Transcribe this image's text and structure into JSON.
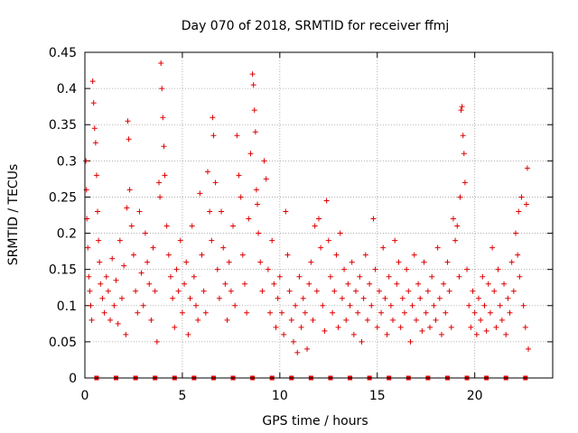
{
  "chart_data": {
    "type": "scatter",
    "title": "Day 070 of 2018, SRMTID for receiver ffmj",
    "xlabel": "GPS time / hours",
    "ylabel": "SRMTID / TECUs",
    "xlim": [
      0,
      24
    ],
    "ylim": [
      0,
      0.45
    ],
    "xticks": [
      0,
      5,
      10,
      15,
      20
    ],
    "xtick_labels": [
      "0",
      "5",
      "10",
      "15",
      "20"
    ],
    "yticks": [
      0,
      0.05,
      0.1,
      0.15,
      0.2,
      0.25,
      0.3,
      0.35,
      0.4,
      0.45
    ],
    "ytick_labels": [
      "0",
      "0.05",
      "0.1",
      "0.15",
      "0.2",
      "0.25",
      "0.3",
      "0.35",
      "0.4",
      "0.45"
    ],
    "grid": true,
    "marker": "+",
    "color": "#e00000",
    "series": [
      {
        "name": "SRMTID",
        "points": [
          [
            0.05,
            0.3
          ],
          [
            0.08,
            0.26
          ],
          [
            0.1,
            0.22
          ],
          [
            0.15,
            0.18
          ],
          [
            0.2,
            0.14
          ],
          [
            0.25,
            0.12
          ],
          [
            0.3,
            0.1
          ],
          [
            0.35,
            0.08
          ],
          [
            0.4,
            0.41
          ],
          [
            0.45,
            0.38
          ],
          [
            0.5,
            0.345
          ],
          [
            0.55,
            0.325
          ],
          [
            0.6,
            0.28
          ],
          [
            0.65,
            0.23
          ],
          [
            0.7,
            0.19
          ],
          [
            0.75,
            0.16
          ],
          [
            0.8,
            0.13
          ],
          [
            0.9,
            0.11
          ],
          [
            1.0,
            0.09
          ],
          [
            1.1,
            0.14
          ],
          [
            1.2,
            0.12
          ],
          [
            1.3,
            0.08
          ],
          [
            1.4,
            0.165
          ],
          [
            1.5,
            0.1
          ],
          [
            1.6,
            0.135
          ],
          [
            1.7,
            0.075
          ],
          [
            1.8,
            0.19
          ],
          [
            1.9,
            0.11
          ],
          [
            2.0,
            0.155
          ],
          [
            2.1,
            0.06
          ],
          [
            2.15,
            0.235
          ],
          [
            2.2,
            0.355
          ],
          [
            2.25,
            0.33
          ],
          [
            2.3,
            0.26
          ],
          [
            2.4,
            0.21
          ],
          [
            2.5,
            0.17
          ],
          [
            2.6,
            0.12
          ],
          [
            2.7,
            0.09
          ],
          [
            2.8,
            0.23
          ],
          [
            2.9,
            0.145
          ],
          [
            3.0,
            0.1
          ],
          [
            3.1,
            0.2
          ],
          [
            3.2,
            0.16
          ],
          [
            3.3,
            0.13
          ],
          [
            3.4,
            0.08
          ],
          [
            3.5,
            0.18
          ],
          [
            3.6,
            0.12
          ],
          [
            3.7,
            0.05
          ],
          [
            3.8,
            0.27
          ],
          [
            3.85,
            0.25
          ],
          [
            3.9,
            0.435
          ],
          [
            3.95,
            0.4
          ],
          [
            4.0,
            0.36
          ],
          [
            4.05,
            0.32
          ],
          [
            4.1,
            0.28
          ],
          [
            4.2,
            0.21
          ],
          [
            4.3,
            0.17
          ],
          [
            4.4,
            0.14
          ],
          [
            4.5,
            0.11
          ],
          [
            4.6,
            0.07
          ],
          [
            4.7,
            0.15
          ],
          [
            4.8,
            0.12
          ],
          [
            4.9,
            0.19
          ],
          [
            5.0,
            0.09
          ],
          [
            5.1,
            0.13
          ],
          [
            5.2,
            0.16
          ],
          [
            5.3,
            0.06
          ],
          [
            5.4,
            0.11
          ],
          [
            5.5,
            0.21
          ],
          [
            5.6,
            0.14
          ],
          [
            5.7,
            0.1
          ],
          [
            5.8,
            0.08
          ],
          [
            5.9,
            0.255
          ],
          [
            6.0,
            0.17
          ],
          [
            6.1,
            0.12
          ],
          [
            6.2,
            0.09
          ],
          [
            6.3,
            0.285
          ],
          [
            6.4,
            0.23
          ],
          [
            6.5,
            0.19
          ],
          [
            6.55,
            0.36
          ],
          [
            6.6,
            0.335
          ],
          [
            6.7,
            0.27
          ],
          [
            6.8,
            0.15
          ],
          [
            6.9,
            0.11
          ],
          [
            7.0,
            0.23
          ],
          [
            7.1,
            0.18
          ],
          [
            7.2,
            0.13
          ],
          [
            7.3,
            0.08
          ],
          [
            7.4,
            0.16
          ],
          [
            7.5,
            0.12
          ],
          [
            7.6,
            0.21
          ],
          [
            7.7,
            0.1
          ],
          [
            7.8,
            0.335
          ],
          [
            7.9,
            0.28
          ],
          [
            8.0,
            0.25
          ],
          [
            8.1,
            0.17
          ],
          [
            8.2,
            0.13
          ],
          [
            8.3,
            0.09
          ],
          [
            8.4,
            0.22
          ],
          [
            8.5,
            0.31
          ],
          [
            8.6,
            0.42
          ],
          [
            8.65,
            0.405
          ],
          [
            8.7,
            0.37
          ],
          [
            8.75,
            0.34
          ],
          [
            8.8,
            0.26
          ],
          [
            8.85,
            0.24
          ],
          [
            8.9,
            0.2
          ],
          [
            9.0,
            0.16
          ],
          [
            9.1,
            0.12
          ],
          [
            9.2,
            0.3
          ],
          [
            9.3,
            0.275
          ],
          [
            9.4,
            0.15
          ],
          [
            9.5,
            0.09
          ],
          [
            9.6,
            0.19
          ],
          [
            9.7,
            0.13
          ],
          [
            9.8,
            0.07
          ],
          [
            9.9,
            0.11
          ],
          [
            10.0,
            0.14
          ],
          [
            10.1,
            0.09
          ],
          [
            10.2,
            0.06
          ],
          [
            10.3,
            0.23
          ],
          [
            10.4,
            0.17
          ],
          [
            10.5,
            0.12
          ],
          [
            10.6,
            0.08
          ],
          [
            10.7,
            0.05
          ],
          [
            10.8,
            0.1
          ],
          [
            10.9,
            0.035
          ],
          [
            11.0,
            0.14
          ],
          [
            11.1,
            0.07
          ],
          [
            11.2,
            0.11
          ],
          [
            11.3,
            0.09
          ],
          [
            11.4,
            0.04
          ],
          [
            11.5,
            0.13
          ],
          [
            11.6,
            0.16
          ],
          [
            11.7,
            0.08
          ],
          [
            11.8,
            0.21
          ],
          [
            11.9,
            0.12
          ],
          [
            12.0,
            0.22
          ],
          [
            12.1,
            0.18
          ],
          [
            12.2,
            0.1
          ],
          [
            12.3,
            0.065
          ],
          [
            12.4,
            0.245
          ],
          [
            12.5,
            0.19
          ],
          [
            12.6,
            0.14
          ],
          [
            12.7,
            0.09
          ],
          [
            12.8,
            0.12
          ],
          [
            12.9,
            0.17
          ],
          [
            13.0,
            0.07
          ],
          [
            13.1,
            0.2
          ],
          [
            13.2,
            0.11
          ],
          [
            13.3,
            0.15
          ],
          [
            13.4,
            0.08
          ],
          [
            13.5,
            0.13
          ],
          [
            13.6,
            0.1
          ],
          [
            13.7,
            0.16
          ],
          [
            13.8,
            0.06
          ],
          [
            13.9,
            0.12
          ],
          [
            14.0,
            0.09
          ],
          [
            14.1,
            0.14
          ],
          [
            14.2,
            0.05
          ],
          [
            14.3,
            0.11
          ],
          [
            14.4,
            0.17
          ],
          [
            14.5,
            0.08
          ],
          [
            14.6,
            0.13
          ],
          [
            14.7,
            0.1
          ],
          [
            14.8,
            0.22
          ],
          [
            14.9,
            0.15
          ],
          [
            15.0,
            0.07
          ],
          [
            15.1,
            0.12
          ],
          [
            15.2,
            0.09
          ],
          [
            15.3,
            0.18
          ],
          [
            15.4,
            0.11
          ],
          [
            15.5,
            0.06
          ],
          [
            15.6,
            0.14
          ],
          [
            15.7,
            0.1
          ],
          [
            15.8,
            0.08
          ],
          [
            15.9,
            0.19
          ],
          [
            16.0,
            0.13
          ],
          [
            16.1,
            0.16
          ],
          [
            16.2,
            0.07
          ],
          [
            16.3,
            0.11
          ],
          [
            16.4,
            0.09
          ],
          [
            16.5,
            0.15
          ],
          [
            16.6,
            0.12
          ],
          [
            16.7,
            0.05
          ],
          [
            16.8,
            0.1
          ],
          [
            16.9,
            0.17
          ],
          [
            17.0,
            0.08
          ],
          [
            17.1,
            0.13
          ],
          [
            17.2,
            0.11
          ],
          [
            17.3,
            0.065
          ],
          [
            17.4,
            0.16
          ],
          [
            17.5,
            0.09
          ],
          [
            17.6,
            0.12
          ],
          [
            17.7,
            0.07
          ],
          [
            17.8,
            0.14
          ],
          [
            17.9,
            0.1
          ],
          [
            18.0,
            0.08
          ],
          [
            18.1,
            0.18
          ],
          [
            18.2,
            0.11
          ],
          [
            18.3,
            0.06
          ],
          [
            18.4,
            0.13
          ],
          [
            18.5,
            0.09
          ],
          [
            18.6,
            0.16
          ],
          [
            18.7,
            0.12
          ],
          [
            18.8,
            0.07
          ],
          [
            18.9,
            0.22
          ],
          [
            19.0,
            0.19
          ],
          [
            19.1,
            0.21
          ],
          [
            19.2,
            0.14
          ],
          [
            19.25,
            0.25
          ],
          [
            19.3,
            0.37
          ],
          [
            19.35,
            0.375
          ],
          [
            19.4,
            0.335
          ],
          [
            19.45,
            0.31
          ],
          [
            19.5,
            0.27
          ],
          [
            19.6,
            0.15
          ],
          [
            19.7,
            0.1
          ],
          [
            19.8,
            0.07
          ],
          [
            19.9,
            0.12
          ],
          [
            20.0,
            0.09
          ],
          [
            20.1,
            0.06
          ],
          [
            20.2,
            0.11
          ],
          [
            20.3,
            0.08
          ],
          [
            20.4,
            0.14
          ],
          [
            20.5,
            0.1
          ],
          [
            20.6,
            0.065
          ],
          [
            20.7,
            0.13
          ],
          [
            20.8,
            0.09
          ],
          [
            20.9,
            0.18
          ],
          [
            21.0,
            0.12
          ],
          [
            21.1,
            0.07
          ],
          [
            21.2,
            0.15
          ],
          [
            21.3,
            0.1
          ],
          [
            21.4,
            0.08
          ],
          [
            21.5,
            0.13
          ],
          [
            21.6,
            0.06
          ],
          [
            21.7,
            0.11
          ],
          [
            21.8,
            0.09
          ],
          [
            21.9,
            0.16
          ],
          [
            22.0,
            0.12
          ],
          [
            22.1,
            0.2
          ],
          [
            22.2,
            0.17
          ],
          [
            22.25,
            0.23
          ],
          [
            22.3,
            0.14
          ],
          [
            22.4,
            0.25
          ],
          [
            22.5,
            0.1
          ],
          [
            22.6,
            0.07
          ],
          [
            22.65,
            0.24
          ],
          [
            22.7,
            0.29
          ],
          [
            22.75,
            0.04
          ]
        ]
      }
    ],
    "gap_markers_x": [
      0.6,
      1.6,
      2.6,
      3.6,
      4.6,
      5.6,
      6.6,
      7.6,
      8.6,
      9.6,
      10.6,
      11.6,
      12.6,
      13.6,
      14.6,
      15.6,
      16.6,
      17.6,
      18.6,
      19.6,
      20.6,
      21.6,
      22.6
    ]
  }
}
